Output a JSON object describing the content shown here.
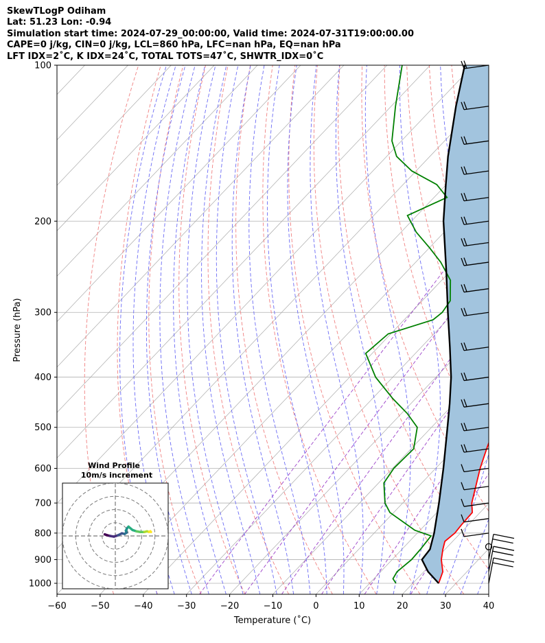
{
  "header": {
    "line1": "SkewTLogP Odiham",
    "line2": "Lat: 51.23   Lon: -0.94",
    "line3": "Simulation start time: 2024-07-29_00:00:00, Valid time: 2024-07-31T19:00:00.00",
    "line4": "CAPE=0 j/kg, CIN=0 j/kg, LCL=860 hPa, LFC=nan hPa, EQ=nan hPa",
    "line5": "LFT IDX=2˚C, K IDX=24˚C, TOTAL TOTS=47˚C, SHWTR_IDX=0˚C"
  },
  "chart_data": {
    "type": "line",
    "subtype": "skew-t log-p",
    "xlabel": "Temperature (˚C)",
    "ylabel": "Pressure (hPa)",
    "xlim": [
      -60,
      40
    ],
    "ylim": [
      1050,
      100
    ],
    "y_scale": "log",
    "x_ticks": [
      -60,
      -50,
      -40,
      -30,
      -20,
      -10,
      0,
      10,
      20,
      30,
      40
    ],
    "x_tick_labels": [
      "−60",
      "−50",
      "−40",
      "−30",
      "−20",
      "−10",
      "0",
      "10",
      "20",
      "30",
      "40"
    ],
    "y_ticks": [
      1000,
      900,
      800,
      700,
      600,
      500,
      400,
      300,
      200,
      100
    ],
    "y_tick_labels": [
      "1000",
      "900",
      "800",
      "700",
      "600",
      "500",
      "400",
      "300",
      "200",
      "100"
    ],
    "grid": true,
    "colors": {
      "temperature": "#ff0000",
      "dewpoint": "#008000",
      "parcel": "#000000",
      "cape_fill": "#a2c4de",
      "dry_adiabat": "#f08080",
      "moist_adiabat": "#6a6af5",
      "mixing_ratio": "#9b40c9",
      "isotherm": "#aaaaaa"
    },
    "series": [
      {
        "key": "temperature",
        "points": [
          [
            1000,
            26.0
          ],
          [
            950,
            24.4
          ],
          [
            900,
            21.4
          ],
          [
            860,
            19.5
          ],
          [
            830,
            18.2
          ],
          [
            800,
            18.7
          ],
          [
            770,
            18.4
          ],
          [
            730,
            18.2
          ],
          [
            700,
            16.0
          ],
          [
            600,
            10.3
          ],
          [
            550,
            7.5
          ],
          [
            500,
            4.6
          ],
          [
            450,
            1.5
          ],
          [
            400,
            -3.1
          ],
          [
            350,
            -8.2
          ],
          [
            300,
            -14.5
          ],
          [
            270,
            -19.0
          ],
          [
            240,
            -24.7
          ],
          [
            220,
            -30.0
          ],
          [
            205,
            -36.3
          ],
          [
            200,
            -38.2
          ],
          [
            180,
            -37.3
          ],
          [
            170,
            -35.5
          ],
          [
            160,
            -38.1
          ],
          [
            150,
            -42.2
          ],
          [
            130,
            -53.0
          ],
          [
            115,
            -62.5
          ],
          [
            100,
            -72.3
          ]
        ]
      },
      {
        "key": "dewpoint",
        "points": [
          [
            1000,
            16.1
          ],
          [
            980,
            14.4
          ],
          [
            950,
            13.8
          ],
          [
            900,
            14.5
          ],
          [
            860,
            14.3
          ],
          [
            810,
            13.8
          ],
          [
            790,
            8.8
          ],
          [
            730,
            -0.9
          ],
          [
            700,
            -4.1
          ],
          [
            640,
            -8.8
          ],
          [
            600,
            -9.7
          ],
          [
            550,
            -9.4
          ],
          [
            500,
            -13.3
          ],
          [
            470,
            -18.7
          ],
          [
            440,
            -25.3
          ],
          [
            400,
            -34.0
          ],
          [
            360,
            -41.5
          ],
          [
            330,
            -40.6
          ],
          [
            310,
            -33.3
          ],
          [
            300,
            -32.8
          ],
          [
            285,
            -33.5
          ],
          [
            260,
            -38.0
          ],
          [
            240,
            -44.2
          ],
          [
            225,
            -50.0
          ],
          [
            210,
            -56.5
          ],
          [
            195,
            -62.2
          ],
          [
            180,
            -57.0
          ],
          [
            170,
            -62.2
          ],
          [
            160,
            -71.0
          ],
          [
            150,
            -77.7
          ],
          [
            140,
            -82.2
          ],
          [
            120,
            -89.0
          ],
          [
            100,
            -96.5
          ]
        ]
      },
      {
        "key": "parcel",
        "points": [
          [
            1000,
            26.0
          ],
          [
            950,
            21.0
          ],
          [
            900,
            16.9
          ],
          [
            860,
            16.5
          ],
          [
            800,
            13.9
          ],
          [
            700,
            8.4
          ],
          [
            600,
            1.8
          ],
          [
            500,
            -6.3
          ],
          [
            450,
            -11.0
          ],
          [
            400,
            -16.5
          ],
          [
            350,
            -23.4
          ],
          [
            300,
            -31.5
          ],
          [
            250,
            -40.9
          ],
          [
            200,
            -52.6
          ],
          [
            170,
            -60.1
          ],
          [
            150,
            -65.8
          ],
          [
            120,
            -75.0
          ],
          [
            100,
            -82.0
          ]
        ]
      }
    ],
    "wind_barbs": {
      "pressures": [
        1000,
        950,
        900,
        850,
        800,
        750,
        700,
        650,
        600,
        550,
        500,
        450,
        400,
        350,
        300,
        270,
        240,
        220,
        200,
        180,
        160,
        140,
        120,
        100
      ],
      "calm_at": 850
    },
    "hodograph": {
      "title_line1": "Wind Profile",
      "title_line2": "10m/s increment",
      "rings_ms": [
        10,
        20,
        30,
        40
      ],
      "range_ms": 40,
      "colormap": "viridis",
      "u": [
        -8.0,
        -6.0,
        -4.0,
        -1.0,
        2.0,
        5.0,
        7.0,
        8.5,
        8.0,
        9.0,
        10.0,
        13.0,
        16.0,
        19.0,
        22.0,
        24.0,
        25.5,
        26.5,
        27.0
      ],
      "v": [
        1.2,
        0.5,
        0.0,
        -0.5,
        0.5,
        2.0,
        1.5,
        2.5,
        4.0,
        6.0,
        7.0,
        4.5,
        3.5,
        3.0,
        3.0,
        3.5,
        3.0,
        3.5,
        3.0
      ]
    }
  }
}
